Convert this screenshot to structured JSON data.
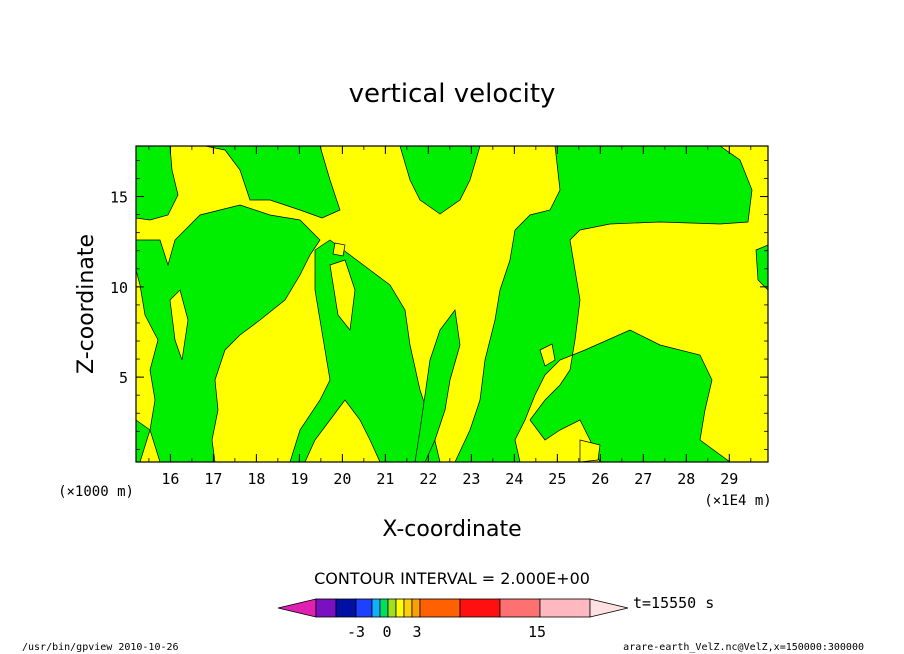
{
  "chart_data": {
    "type": "heatmap",
    "title": "vertical velocity",
    "xlabel": "X-coordinate",
    "ylabel": "Z-coordinate",
    "x_unit_left": "(×1000 m)",
    "x_unit_right": "(×1E4 m)",
    "xlim": [
      15.2,
      29.9
    ],
    "ylim": [
      0.3,
      17.8
    ],
    "x_ticks": [
      16,
      17,
      18,
      19,
      20,
      21,
      22,
      23,
      24,
      25,
      26,
      27,
      28,
      29
    ],
    "y_ticks": [
      5,
      10,
      15
    ],
    "contour_interval_text": "CONTOUR INTERVAL = 2.000E+00",
    "time_text": "t=15550 s",
    "colorbar": {
      "colors": [
        "#e020b0",
        "#7a10c0",
        "#0010a0",
        "#2040ff",
        "#10b0ff",
        "#00e060",
        "#a0e020",
        "#ffff00",
        "#ffd000",
        "#ffa000",
        "#ff6000",
        "#ff1010",
        "#ff7070",
        "#ffb8c0",
        "#ffe0e0"
      ],
      "labels": [
        "-3",
        "0",
        "3",
        "15"
      ]
    },
    "regions_colors": {
      "positive": "#ffff00",
      "negative": "#00ee00"
    },
    "footer_left": "/usr/bin/gpview  2010-10-26",
    "footer_right": "arare-earth_VelZ.nc@VelZ,x=150000:300000"
  }
}
